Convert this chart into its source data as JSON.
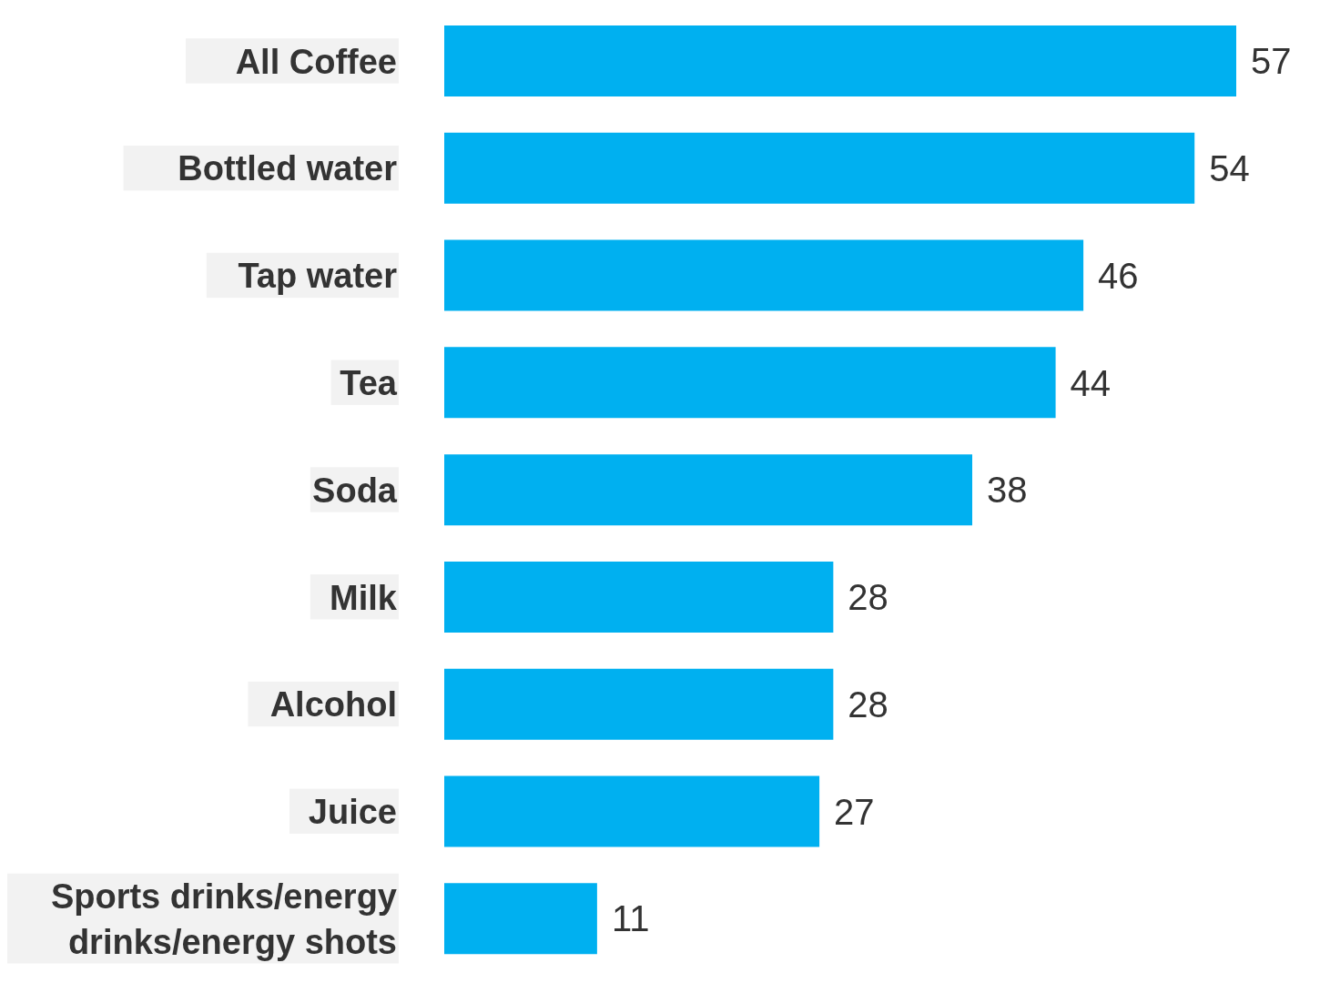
{
  "chart_data": {
    "type": "bar",
    "orientation": "horizontal",
    "data_labels": true,
    "categories": [
      "All Coffee",
      "Bottled water",
      "Tap water",
      "Tea",
      "Soda",
      "Milk",
      "Alcohol",
      "Juice",
      "Sports drinks/energy drinks/energy shots"
    ],
    "values": [
      57,
      54,
      46,
      44,
      38,
      28,
      28,
      27,
      11
    ],
    "color": "#00b0f0",
    "grid": false,
    "legend": false
  }
}
